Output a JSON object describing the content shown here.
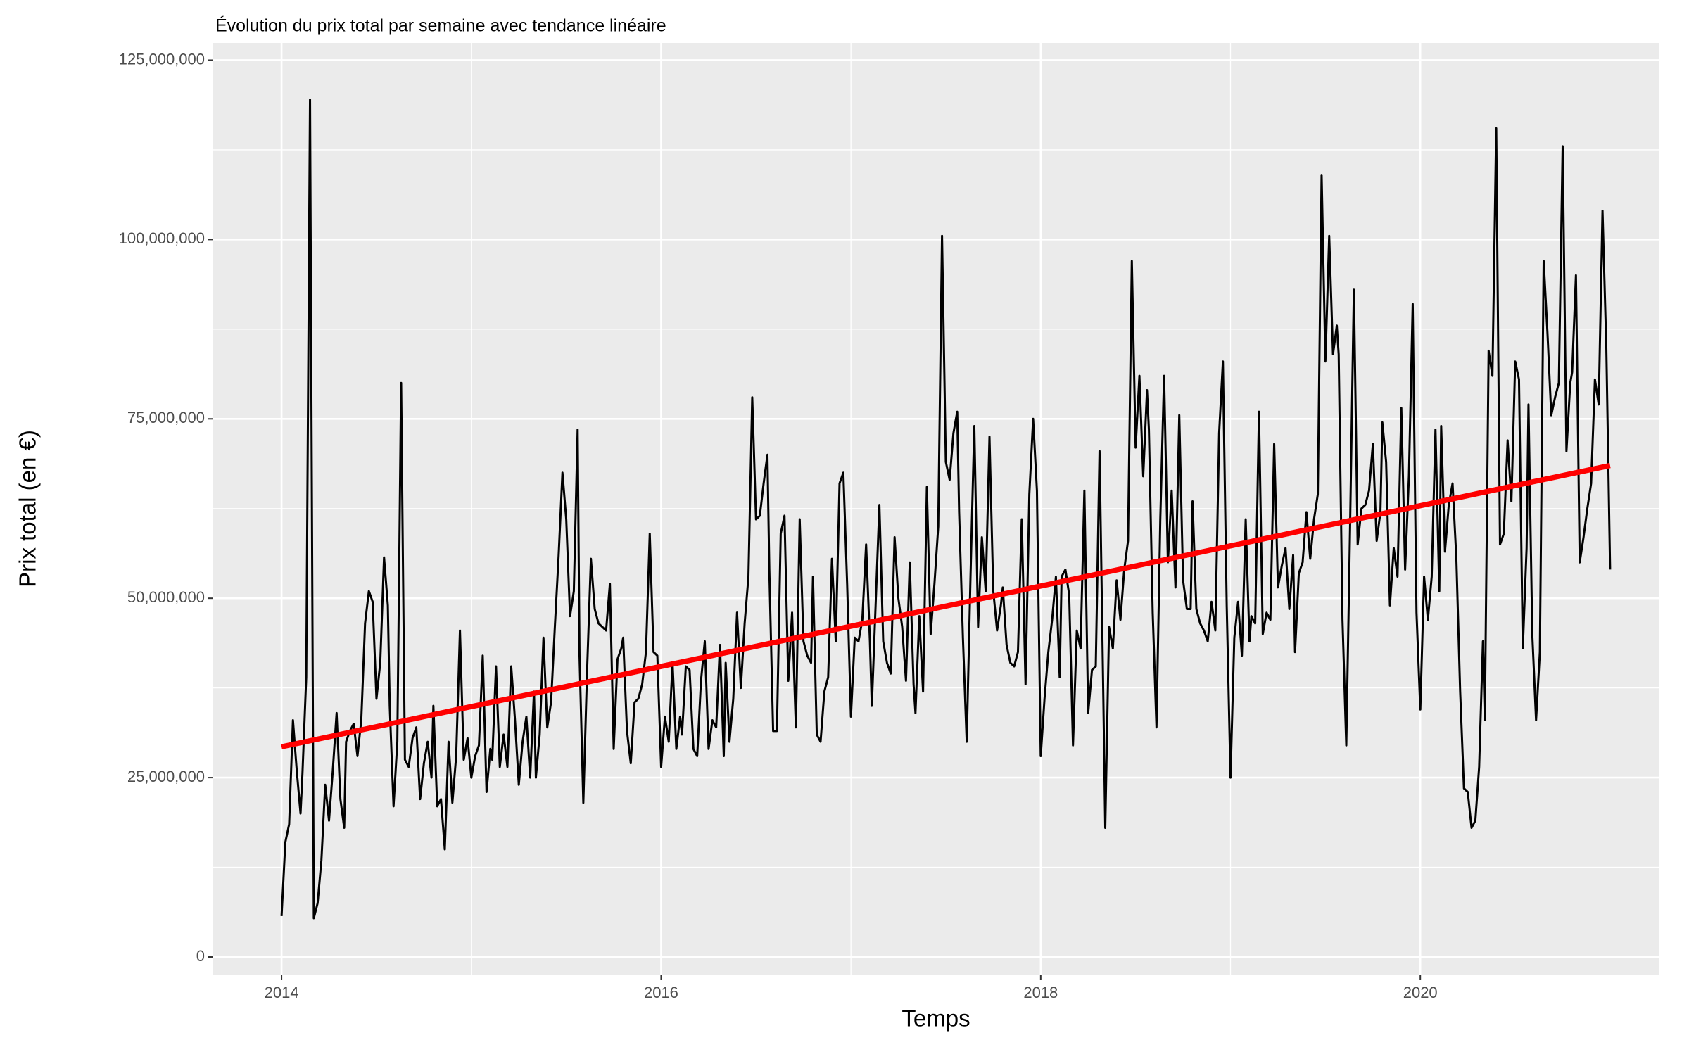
{
  "chart_data": {
    "type": "line",
    "title": "Évolution du prix total par semaine avec tendance linéaire",
    "x_label": "Temps",
    "y_label": "Prix total (en €)",
    "xlim": [
      2013.64,
      2021.26
    ],
    "ylim": [
      -2550000.0,
      127400000.0
    ],
    "xticks": [
      2014,
      2016,
      2018,
      2020
    ],
    "yticks": [
      {
        "value": 0,
        "label": "0"
      },
      {
        "value": 25000000,
        "label": "25,000,000"
      },
      {
        "value": 50000000,
        "label": "50,000,000"
      },
      {
        "value": 75000000,
        "label": "75,000,000"
      },
      {
        "value": 100000000,
        "label": "100,000,000"
      },
      {
        "value": 125000000,
        "label": "125,000,000"
      }
    ],
    "grid": true,
    "series": [
      {
        "color": "#000000",
        "x": [
          2014,
          2014.02,
          2014.04,
          2014.06,
          2014.08,
          2014.1,
          2014.11,
          2014.13,
          2014.15,
          2014.17,
          2014.19,
          2014.21,
          2014.23,
          2014.25,
          2014.27,
          2014.29,
          2014.31,
          2014.33,
          2014.34,
          2014.36,
          2014.38,
          2014.4,
          2014.42,
          2014.44,
          2014.46,
          2014.48,
          2014.5,
          2014.52,
          2014.54,
          2014.56,
          2014.57,
          2014.59,
          2014.61,
          2014.63,
          2014.65,
          2014.67,
          2014.69,
          2014.71,
          2014.73,
          2014.75,
          2014.77,
          2014.79,
          2014.8,
          2014.82,
          2014.84,
          2014.86,
          2014.88,
          2014.9,
          2014.92,
          2014.94,
          2014.96,
          2014.98,
          2015,
          2015.02,
          2015.04,
          2015.06,
          2015.08,
          2015.1,
          2015.11,
          2015.13,
          2015.15,
          2015.17,
          2015.19,
          2015.21,
          2015.23,
          2015.25,
          2015.27,
          2015.29,
          2015.31,
          2015.33,
          2015.34,
          2015.36,
          2015.38,
          2015.4,
          2015.42,
          2015.44,
          2015.46,
          2015.48,
          2015.5,
          2015.52,
          2015.54,
          2015.56,
          2015.57,
          2015.59,
          2015.61,
          2015.63,
          2015.65,
          2015.67,
          2015.69,
          2015.71,
          2015.73,
          2015.75,
          2015.77,
          2015.79,
          2015.8,
          2015.82,
          2015.84,
          2015.86,
          2015.88,
          2015.9,
          2015.92,
          2015.94,
          2015.96,
          2015.98,
          2016,
          2016.02,
          2016.04,
          2016.06,
          2016.08,
          2016.1,
          2016.11,
          2016.13,
          2016.15,
          2016.17,
          2016.19,
          2016.21,
          2016.23,
          2016.25,
          2016.27,
          2016.29,
          2016.31,
          2016.33,
          2016.34,
          2016.36,
          2016.38,
          2016.4,
          2016.42,
          2016.44,
          2016.46,
          2016.48,
          2016.5,
          2016.52,
          2016.54,
          2016.56,
          2016.57,
          2016.59,
          2016.61,
          2016.63,
          2016.65,
          2016.67,
          2016.69,
          2016.71,
          2016.73,
          2016.75,
          2016.77,
          2016.79,
          2016.8,
          2016.82,
          2016.84,
          2016.86,
          2016.88,
          2016.9,
          2016.92,
          2016.94,
          2016.96,
          2016.98,
          2017,
          2017.02,
          2017.04,
          2017.06,
          2017.08,
          2017.1,
          2017.11,
          2017.13,
          2017.15,
          2017.17,
          2017.19,
          2017.21,
          2017.23,
          2017.25,
          2017.27,
          2017.29,
          2017.31,
          2017.33,
          2017.34,
          2017.36,
          2017.38,
          2017.4,
          2017.42,
          2017.44,
          2017.46,
          2017.48,
          2017.5,
          2017.52,
          2017.54,
          2017.56,
          2017.57,
          2017.59,
          2017.61,
          2017.63,
          2017.65,
          2017.67,
          2017.69,
          2017.71,
          2017.73,
          2017.75,
          2017.77,
          2017.79,
          2017.8,
          2017.82,
          2017.84,
          2017.86,
          2017.88,
          2017.9,
          2017.92,
          2017.94,
          2017.96,
          2017.98,
          2018,
          2018.02,
          2018.04,
          2018.06,
          2018.08,
          2018.1,
          2018.11,
          2018.13,
          2018.15,
          2018.17,
          2018.19,
          2018.21,
          2018.23,
          2018.25,
          2018.27,
          2018.29,
          2018.31,
          2018.33,
          2018.34,
          2018.36,
          2018.38,
          2018.4,
          2018.42,
          2018.44,
          2018.46,
          2018.48,
          2018.5,
          2018.52,
          2018.54,
          2018.56,
          2018.57,
          2018.59,
          2018.61,
          2018.63,
          2018.65,
          2018.67,
          2018.69,
          2018.71,
          2018.73,
          2018.75,
          2018.77,
          2018.79,
          2018.8,
          2018.82,
          2018.84,
          2018.86,
          2018.88,
          2018.9,
          2018.92,
          2018.94,
          2018.96,
          2018.98,
          2019,
          2019.02,
          2019.04,
          2019.06,
          2019.08,
          2019.1,
          2019.11,
          2019.13,
          2019.15,
          2019.17,
          2019.19,
          2019.21,
          2019.23,
          2019.25,
          2019.27,
          2019.29,
          2019.31,
          2019.33,
          2019.34,
          2019.36,
          2019.38,
          2019.4,
          2019.42,
          2019.44,
          2019.46,
          2019.48,
          2019.5,
          2019.52,
          2019.54,
          2019.56,
          2019.57,
          2019.59,
          2019.61,
          2019.63,
          2019.65,
          2019.67,
          2019.69,
          2019.71,
          2019.73,
          2019.75,
          2019.77,
          2019.79,
          2019.8,
          2019.82,
          2019.84,
          2019.86,
          2019.88,
          2019.9,
          2019.92,
          2019.94,
          2019.96,
          2019.98,
          2020,
          2020.02,
          2020.04,
          2020.06,
          2020.08,
          2020.1,
          2020.11,
          2020.13,
          2020.15,
          2020.17,
          2020.19,
          2020.21,
          2020.23,
          2020.25,
          2020.27,
          2020.29,
          2020.31,
          2020.33,
          2020.34,
          2020.36,
          2020.38,
          2020.4,
          2020.42,
          2020.44,
          2020.46,
          2020.48,
          2020.5,
          2020.52,
          2020.54,
          2020.56,
          2020.57,
          2020.59,
          2020.61,
          2020.63,
          2020.65,
          2020.67,
          2020.69,
          2020.71,
          2020.73,
          2020.75,
          2020.77,
          2020.79,
          2020.8,
          2020.82,
          2020.84,
          2020.86,
          2020.88,
          2020.9,
          2020.92,
          2020.94,
          2020.96,
          2020.98,
          2021
        ],
        "values": [
          5700000.0,
          16000000.0,
          18500000.0,
          33000000.0,
          26000000.0,
          20000000.0,
          25500000.0,
          39000000.0,
          119500000.0,
          5400000.0,
          7500000.0,
          13500000.0,
          24000000.0,
          19000000.0,
          26000000.0,
          34000000.0,
          22000000.0,
          18000000.0,
          30000000.0,
          31500000.0,
          32500000.0,
          28000000.0,
          33000000.0,
          46500000.0,
          51000000.0,
          49500000.0,
          36000000.0,
          41000000.0,
          55700000.0,
          49000000.0,
          35000000.0,
          21000000.0,
          30000000.0,
          80000000.0,
          27500000.0,
          26500000.0,
          30500000.0,
          32000000.0,
          22000000.0,
          27000000.0,
          30000000.0,
          25000000.0,
          35000000.0,
          21000000.0,
          22000000.0,
          15000000.0,
          30000000.0,
          21500000.0,
          28000000.0,
          45500000.0,
          27500000.0,
          30500000.0,
          25000000.0,
          28000000.0,
          29500000.0,
          42000000.0,
          23000000.0,
          29000000.0,
          27500000.0,
          40500000.0,
          26500000.0,
          31000000.0,
          26500000.0,
          40500000.0,
          33000000.0,
          24000000.0,
          30000000.0,
          33500000.0,
          25000000.0,
          37000000.0,
          25000000.0,
          31000000.0,
          44500000.0,
          32000000.0,
          35500000.0,
          46000000.0,
          56000000.0,
          67500000.0,
          61000000.0,
          47500000.0,
          51000000.0,
          73500000.0,
          42000000.0,
          21500000.0,
          40000000.0,
          55500000.0,
          48500000.0,
          46500000.0,
          46000000.0,
          45500000.0,
          52000000.0,
          29000000.0,
          41500000.0,
          43000000.0,
          44500000.0,
          31500000.0,
          27000000.0,
          35500000.0,
          36000000.0,
          38000000.0,
          42500000.0,
          59000000.0,
          42500000.0,
          42000000.0,
          26500000.0,
          33500000.0,
          30000000.0,
          41000000.0,
          29000000.0,
          33500000.0,
          31000000.0,
          40500000.0,
          40000000.0,
          29000000.0,
          28000000.0,
          38500000.0,
          44000000.0,
          29000000.0,
          33000000.0,
          32000000.0,
          43500000.0,
          28000000.0,
          41000000.0,
          30000000.0,
          36000000.0,
          48000000.0,
          37500000.0,
          46500000.0,
          53000000.0,
          78000000.0,
          61000000.0,
          61500000.0,
          66000000.0,
          70000000.0,
          54000000.0,
          31500000.0,
          31500000.0,
          59000000.0,
          61500000.0,
          38500000.0,
          48000000.0,
          32000000.0,
          61000000.0,
          44000000.0,
          42000000.0,
          41000000.0,
          53000000.0,
          31000000.0,
          30000000.0,
          37000000.0,
          39000000.0,
          55500000.0,
          44000000.0,
          66000000.0,
          67500000.0,
          52000000.0,
          33500000.0,
          44500000.0,
          44000000.0,
          47000000.0,
          57500000.0,
          44000000.0,
          35000000.0,
          49000000.0,
          63000000.0,
          44000000.0,
          41000000.0,
          39500000.0,
          58500000.0,
          50000000.0,
          46000000.0,
          38500000.0,
          55000000.0,
          38000000.0,
          34000000.0,
          47500000.0,
          37000000.0,
          65500000.0,
          45000000.0,
          52000000.0,
          60000000.0,
          100500000.0,
          69000000.0,
          66500000.0,
          73000000.0,
          76000000.0,
          62000000.0,
          44500000.0,
          30000000.0,
          53000000.0,
          74000000.0,
          46000000.0,
          58500000.0,
          51000000.0,
          72500000.0,
          51000000.0,
          45500000.0,
          49000000.0,
          51500000.0,
          43500000.0,
          41000000.0,
          40500000.0,
          42500000.0,
          61000000.0,
          38000000.0,
          64500000.0,
          75000000.0,
          65000000.0,
          28000000.0,
          36000000.0,
          42500000.0,
          47000000.0,
          53000000.0,
          39000000.0,
          53000000.0,
          54000000.0,
          50500000.0,
          29500000.0,
          45500000.0,
          43000000.0,
          65000000.0,
          34000000.0,
          40000000.0,
          40500000.0,
          70500000.0,
          36000000.0,
          18000000.0,
          46000000.0,
          43000000.0,
          52500000.0,
          47000000.0,
          54000000.0,
          58000000.0,
          97000000.0,
          71000000.0,
          81000000.0,
          67000000.0,
          79000000.0,
          73500000.0,
          48000000.0,
          32000000.0,
          61000000.0,
          81000000.0,
          55000000.0,
          65000000.0,
          51500000.0,
          75500000.0,
          52500000.0,
          48500000.0,
          48500000.0,
          63500000.0,
          48500000.0,
          46500000.0,
          45500000.0,
          44000000.0,
          49500000.0,
          45500000.0,
          73000000.0,
          83000000.0,
          49000000.0,
          25000000.0,
          44500000.0,
          49500000.0,
          42000000.0,
          61000000.0,
          44000000.0,
          47500000.0,
          46500000.0,
          76000000.0,
          45000000.0,
          48000000.0,
          47000000.0,
          71500000.0,
          51500000.0,
          54500000.0,
          57000000.0,
          48500000.0,
          56000000.0,
          42500000.0,
          53500000.0,
          55000000.0,
          62000000.0,
          55500000.0,
          61000000.0,
          64500000.0,
          109000000.0,
          83000000.0,
          100500000.0,
          84000000.0,
          88000000.0,
          84000000.0,
          47000000.0,
          29500000.0,
          60000000.0,
          93000000.0,
          57500000.0,
          62500000.0,
          63000000.0,
          65000000.0,
          71500000.0,
          58000000.0,
          62000000.0,
          74500000.0,
          69000000.0,
          49000000.0,
          57000000.0,
          53000000.0,
          76500000.0,
          54000000.0,
          67000000.0,
          91000000.0,
          48000000.0,
          34500000.0,
          53000000.0,
          47000000.0,
          53000000.0,
          73500000.0,
          51000000.0,
          74000000.0,
          56500000.0,
          63000000.0,
          66000000.0,
          55500000.0,
          37000000.0,
          23500000.0,
          23000000.0,
          18000000.0,
          19000000.0,
          26500000.0,
          44000000.0,
          33000000.0,
          84500000.0,
          81000000.0,
          115500000.0,
          57500000.0,
          59000000.0,
          72000000.0,
          63500000.0,
          83000000.0,
          80500000.0,
          43000000.0,
          57000000.0,
          77000000.0,
          45000000.0,
          33000000.0,
          42500000.0,
          97000000.0,
          87000000.0,
          75500000.0,
          78000000.0,
          80000000.0,
          113000000.0,
          70500000.0,
          80000000.0,
          81500000.0,
          95000000.0,
          55000000.0,
          58500000.0,
          62500000.0,
          66000000.0,
          80500000.0,
          77000000.0,
          104000000.0,
          85000000.0,
          54000000.0
        ]
      },
      {
        "color": "#ff0000",
        "x": [
          2014,
          2021
        ],
        "values": [
          29300000.0,
          68500000.0
        ]
      }
    ]
  }
}
